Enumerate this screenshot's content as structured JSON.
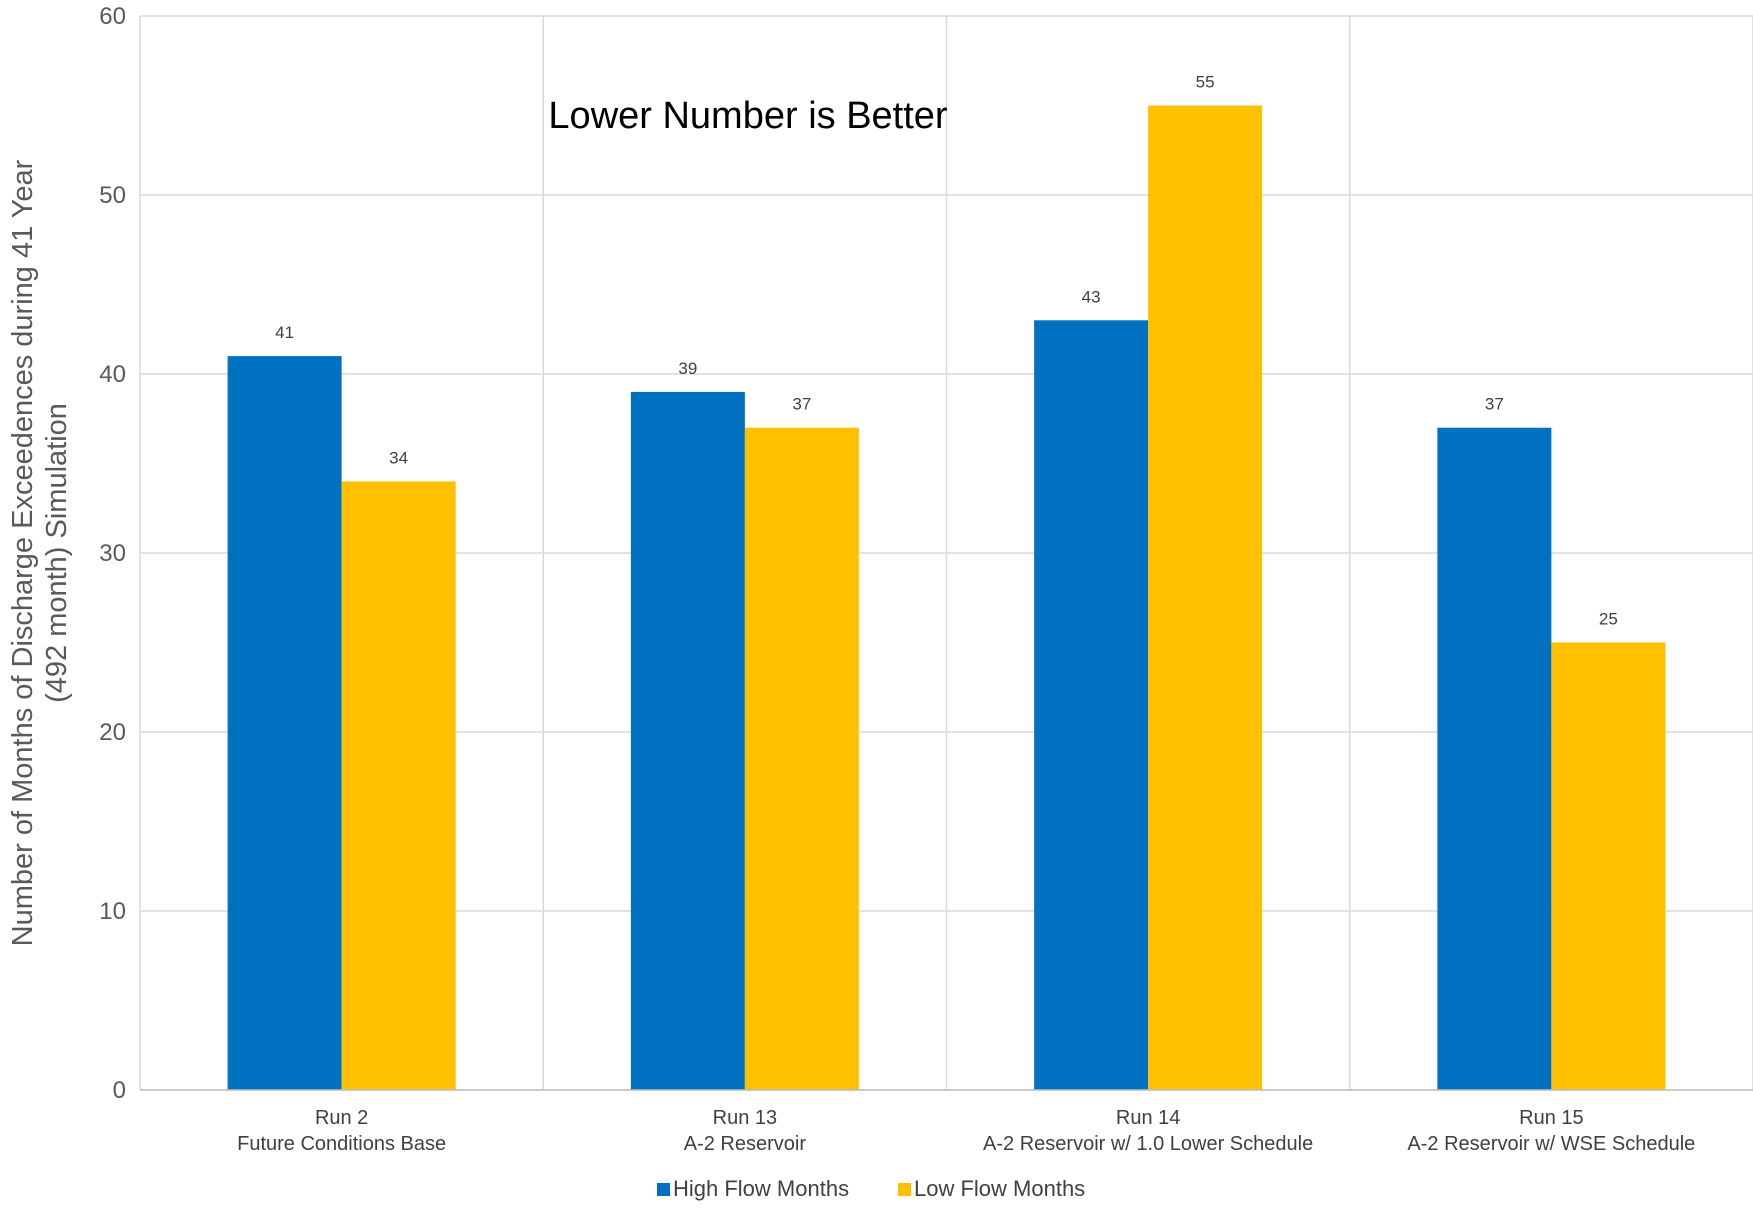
{
  "chart_data": {
    "type": "bar",
    "categories": [
      [
        "Run 2",
        "Future Conditions Base"
      ],
      [
        "Run 13",
        "A-2 Reservoir"
      ],
      [
        "Run 14",
        "A-2 Reservoir w/ 1.0 Lower Schedule"
      ],
      [
        "Run 15",
        "A-2 Reservoir w/ WSE Schedule"
      ]
    ],
    "series": [
      {
        "name": "High Flow Months",
        "color": "#0070C0",
        "values": [
          41,
          39,
          43,
          37
        ]
      },
      {
        "name": "Low Flow Months",
        "color": "#FFC000",
        "values": [
          34,
          37,
          55,
          25
        ]
      }
    ],
    "ylabel": [
      "Number of Months of  Discharge Exceedences during 41 Year",
      "(492 month) Simulation"
    ],
    "ylim": [
      0,
      60
    ],
    "yticks": [
      0,
      10,
      20,
      30,
      40,
      50,
      60
    ],
    "grid": true,
    "annotation": "Lower Number is Better",
    "legend_position": "bottom-center",
    "data_labels": true
  }
}
